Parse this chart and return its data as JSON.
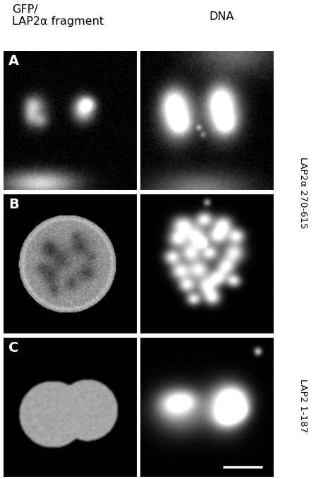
{
  "title_left": "GFP/\nLAP2α fragment",
  "title_right": "DNA",
  "label_A": "A",
  "label_B": "B",
  "label_C": "C",
  "right_label_top": "LAP2α 270-615",
  "right_label_bottom": "LAP2 1-187",
  "figure_width": 4.48,
  "figure_height": 6.78,
  "dpi": 100
}
